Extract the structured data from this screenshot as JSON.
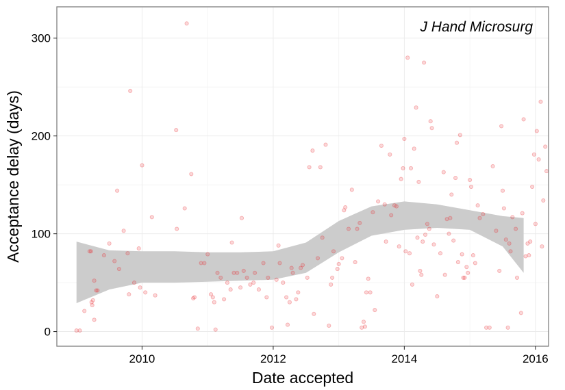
{
  "chart_data": {
    "type": "scatter",
    "xlabel": "Date accepted",
    "ylabel": "Acceptance delay (days)",
    "annotation": "J Hand Microsurg",
    "xlim": [
      2008.7,
      2016.2
    ],
    "ylim": [
      -15,
      332
    ],
    "x_ticks": [
      2010,
      2012,
      2014,
      2016
    ],
    "y_ticks": [
      0,
      100,
      200,
      300
    ],
    "grid": true,
    "point_color": "#e8282e",
    "band_color": "#cccccc",
    "points": [
      [
        2009.0,
        1
      ],
      [
        2009.05,
        1
      ],
      [
        2009.12,
        21
      ],
      [
        2009.2,
        82
      ],
      [
        2009.22,
        82
      ],
      [
        2009.23,
        30
      ],
      [
        2009.24,
        27
      ],
      [
        2009.25,
        32
      ],
      [
        2009.27,
        52
      ],
      [
        2009.27,
        12
      ],
      [
        2009.3,
        42
      ],
      [
        2009.32,
        42
      ],
      [
        2009.42,
        78
      ],
      [
        2009.5,
        90
      ],
      [
        2009.58,
        72
      ],
      [
        2009.62,
        144
      ],
      [
        2009.65,
        64
      ],
      [
        2009.72,
        103
      ],
      [
        2009.78,
        80
      ],
      [
        2009.8,
        38
      ],
      [
        2009.82,
        246
      ],
      [
        2009.88,
        50
      ],
      [
        2009.95,
        85
      ],
      [
        2009.97,
        45
      ],
      [
        2010.0,
        170
      ],
      [
        2010.05,
        40
      ],
      [
        2010.15,
        117
      ],
      [
        2010.2,
        37
      ],
      [
        2010.52,
        206
      ],
      [
        2010.53,
        105
      ],
      [
        2010.65,
        126
      ],
      [
        2010.68,
        315
      ],
      [
        2010.75,
        161
      ],
      [
        2010.78,
        34
      ],
      [
        2010.8,
        35
      ],
      [
        2010.85,
        3
      ],
      [
        2010.9,
        70
      ],
      [
        2010.95,
        70
      ],
      [
        2011.0,
        79
      ],
      [
        2011.05,
        38
      ],
      [
        2011.08,
        35
      ],
      [
        2011.1,
        30
      ],
      [
        2011.12,
        2
      ],
      [
        2011.15,
        60
      ],
      [
        2011.2,
        55
      ],
      [
        2011.25,
        33
      ],
      [
        2011.3,
        50
      ],
      [
        2011.35,
        43
      ],
      [
        2011.37,
        91
      ],
      [
        2011.4,
        60
      ],
      [
        2011.45,
        60
      ],
      [
        2011.5,
        45
      ],
      [
        2011.52,
        116
      ],
      [
        2011.55,
        62
      ],
      [
        2011.6,
        55
      ],
      [
        2011.65,
        48
      ],
      [
        2011.7,
        50
      ],
      [
        2011.72,
        60
      ],
      [
        2011.78,
        43
      ],
      [
        2011.85,
        70
      ],
      [
        2011.9,
        35
      ],
      [
        2011.92,
        55
      ],
      [
        2011.98,
        4
      ],
      [
        2012.05,
        53
      ],
      [
        2012.08,
        88
      ],
      [
        2012.1,
        70
      ],
      [
        2012.15,
        50
      ],
      [
        2012.2,
        35
      ],
      [
        2012.22,
        7
      ],
      [
        2012.25,
        30
      ],
      [
        2012.28,
        65
      ],
      [
        2012.3,
        60
      ],
      [
        2012.35,
        33
      ],
      [
        2012.38,
        40
      ],
      [
        2012.42,
        65
      ],
      [
        2012.45,
        68
      ],
      [
        2012.52,
        55
      ],
      [
        2012.55,
        168
      ],
      [
        2012.6,
        185
      ],
      [
        2012.62,
        18
      ],
      [
        2012.68,
        75
      ],
      [
        2012.72,
        168
      ],
      [
        2012.75,
        96
      ],
      [
        2012.8,
        191
      ],
      [
        2012.85,
        6
      ],
      [
        2012.88,
        48
      ],
      [
        2012.9,
        55
      ],
      [
        2012.92,
        82
      ],
      [
        2012.98,
        64
      ],
      [
        2013.0,
        69
      ],
      [
        2013.05,
        75
      ],
      [
        2013.08,
        124
      ],
      [
        2013.1,
        127
      ],
      [
        2013.15,
        105
      ],
      [
        2013.2,
        145
      ],
      [
        2013.25,
        71
      ],
      [
        2013.28,
        105
      ],
      [
        2013.32,
        111
      ],
      [
        2013.35,
        4
      ],
      [
        2013.38,
        10
      ],
      [
        2013.4,
        5
      ],
      [
        2013.42,
        40
      ],
      [
        2013.45,
        54
      ],
      [
        2013.48,
        40
      ],
      [
        2013.52,
        122
      ],
      [
        2013.55,
        22
      ],
      [
        2013.6,
        133
      ],
      [
        2013.65,
        190
      ],
      [
        2013.7,
        130
      ],
      [
        2013.72,
        92
      ],
      [
        2013.78,
        181
      ],
      [
        2013.8,
        119
      ],
      [
        2013.85,
        129
      ],
      [
        2013.88,
        128
      ],
      [
        2013.92,
        87
      ],
      [
        2013.95,
        156
      ],
      [
        2013.98,
        167
      ],
      [
        2014.0,
        197
      ],
      [
        2014.02,
        82
      ],
      [
        2014.05,
        280
      ],
      [
        2014.08,
        80
      ],
      [
        2014.1,
        167
      ],
      [
        2014.12,
        48
      ],
      [
        2014.15,
        187
      ],
      [
        2014.18,
        229
      ],
      [
        2014.2,
        96
      ],
      [
        2014.22,
        153
      ],
      [
        2014.24,
        62
      ],
      [
        2014.26,
        58
      ],
      [
        2014.28,
        92
      ],
      [
        2014.3,
        275
      ],
      [
        2014.32,
        99
      ],
      [
        2014.35,
        110
      ],
      [
        2014.38,
        105
      ],
      [
        2014.4,
        215
      ],
      [
        2014.42,
        208
      ],
      [
        2014.45,
        89
      ],
      [
        2014.5,
        36
      ],
      [
        2014.55,
        80
      ],
      [
        2014.6,
        163
      ],
      [
        2014.62,
        58
      ],
      [
        2014.65,
        115
      ],
      [
        2014.68,
        100
      ],
      [
        2014.7,
        116
      ],
      [
        2014.72,
        140
      ],
      [
        2014.75,
        93
      ],
      [
        2014.78,
        157
      ],
      [
        2014.8,
        193
      ],
      [
        2014.82,
        71
      ],
      [
        2014.85,
        201
      ],
      [
        2014.88,
        79
      ],
      [
        2014.9,
        55
      ],
      [
        2014.92,
        55
      ],
      [
        2014.95,
        66
      ],
      [
        2014.97,
        60
      ],
      [
        2015.0,
        155
      ],
      [
        2015.02,
        148
      ],
      [
        2015.05,
        78
      ],
      [
        2015.08,
        70
      ],
      [
        2015.12,
        129
      ],
      [
        2015.15,
        116
      ],
      [
        2015.2,
        120
      ],
      [
        2015.25,
        4
      ],
      [
        2015.3,
        4
      ],
      [
        2015.35,
        169
      ],
      [
        2015.4,
        103
      ],
      [
        2015.45,
        62
      ],
      [
        2015.48,
        210
      ],
      [
        2015.5,
        144
      ],
      [
        2015.52,
        126
      ],
      [
        2015.55,
        94
      ],
      [
        2015.58,
        4
      ],
      [
        2015.6,
        90
      ],
      [
        2015.62,
        82
      ],
      [
        2015.65,
        117
      ],
      [
        2015.7,
        105
      ],
      [
        2015.72,
        55
      ],
      [
        2015.78,
        19
      ],
      [
        2015.8,
        121
      ],
      [
        2015.82,
        217
      ],
      [
        2015.85,
        77
      ],
      [
        2015.88,
        90
      ],
      [
        2015.9,
        78
      ],
      [
        2015.92,
        92
      ],
      [
        2015.95,
        148
      ],
      [
        2015.98,
        181
      ],
      [
        2016.0,
        110
      ],
      [
        2016.02,
        205
      ],
      [
        2016.05,
        176
      ],
      [
        2016.08,
        235
      ],
      [
        2016.1,
        87
      ],
      [
        2016.12,
        134
      ],
      [
        2016.15,
        189
      ],
      [
        2016.17,
        164
      ]
    ],
    "band": {
      "x": [
        2009.0,
        2009.5,
        2010.0,
        2010.5,
        2011.0,
        2011.5,
        2012.0,
        2012.5,
        2013.0,
        2013.5,
        2014.0,
        2014.5,
        2015.0,
        2015.5,
        2015.82
      ],
      "upper": [
        92,
        83,
        82,
        82,
        81,
        81,
        82,
        91,
        113,
        128,
        133,
        130,
        124,
        118,
        116
      ],
      "lower": [
        29,
        43,
        50,
        50,
        51,
        52,
        53,
        60,
        81,
        98,
        104,
        106,
        104,
        87,
        60
      ]
    }
  }
}
